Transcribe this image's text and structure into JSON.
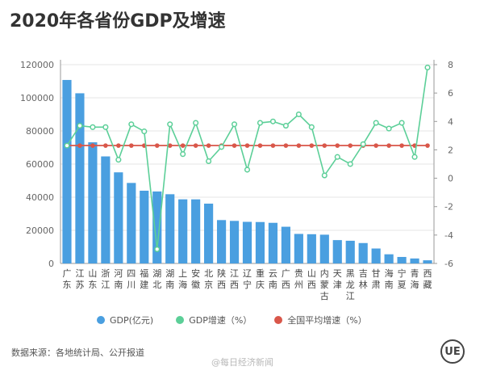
{
  "title": "2020年各省份GDP及增速",
  "source": "数据来源：各地统计局、公开报道",
  "watermark": "@每日经济新闻",
  "logo": "UE",
  "legend": [
    {
      "label": "GDP(亿元)",
      "color": "#4a9fe0"
    },
    {
      "label": "GDP增速（%）",
      "color": "#5ccf98"
    },
    {
      "label": "全国平均增速（%）",
      "color": "#d9574a"
    }
  ],
  "chart_data": {
    "type": "bar",
    "categories": [
      "广东",
      "江苏",
      "山东",
      "浙江",
      "河南",
      "四川",
      "福建",
      "湖北",
      "湖南",
      "上海",
      "安徽",
      "北京",
      "陕西",
      "江西",
      "辽宁",
      "重庆",
      "云南",
      "广西",
      "贵州",
      "山西",
      "内蒙古",
      "天津",
      "黑龙江",
      "吉林",
      "甘肃",
      "海南",
      "宁夏",
      "青海",
      "西藏"
    ],
    "category_labels": [
      "广\n东",
      "江\n苏",
      "山\n东",
      "浙\n江",
      "河\n南",
      "四\n川",
      "福\n建",
      "湖\n北",
      "湖\n南",
      "上\n海",
      "安\n徽",
      "北\n京",
      "陕\n西",
      "江\n西",
      "辽\n宁",
      "重\n庆",
      "云\n南",
      "广\n西",
      "贵\n州",
      "山\n西",
      "内\n蒙\n古",
      "天\n津",
      "黑\n龙\n江",
      "吉\n林",
      "甘\n肃",
      "海\n南",
      "宁\n夏",
      "青\n海",
      "西\n藏"
    ],
    "series": [
      {
        "name": "GDP(亿元)",
        "type": "bar",
        "axis": "left",
        "values": [
          110760,
          102719,
          73129,
          64613,
          54997,
          48599,
          43904,
          43443,
          41782,
          38701,
          38681,
          36103,
          26182,
          25692,
          25115,
          25003,
          24522,
          22157,
          17827,
          17652,
          17360,
          14084,
          13699,
          12311,
          9017,
          5532,
          3921,
          3006,
          1903
        ]
      },
      {
        "name": "GDP增速（%）",
        "type": "line",
        "axis": "right",
        "values": [
          2.3,
          3.7,
          3.6,
          3.6,
          1.3,
          3.8,
          3.3,
          -5.0,
          3.8,
          1.7,
          3.9,
          1.2,
          2.2,
          3.8,
          0.6,
          3.9,
          4.0,
          3.7,
          4.5,
          3.6,
          0.2,
          1.5,
          1.0,
          2.4,
          3.9,
          3.5,
          3.9,
          1.5,
          7.8
        ]
      },
      {
        "name": "全国平均增速（%）",
        "type": "line",
        "axis": "right",
        "values": [
          2.3,
          2.3,
          2.3,
          2.3,
          2.3,
          2.3,
          2.3,
          2.3,
          2.3,
          2.3,
          2.3,
          2.3,
          2.3,
          2.3,
          2.3,
          2.3,
          2.3,
          2.3,
          2.3,
          2.3,
          2.3,
          2.3,
          2.3,
          2.3,
          2.3,
          2.3,
          2.3,
          2.3,
          2.3
        ]
      }
    ],
    "ylim_left": [
      0,
      120000
    ],
    "yticks_left": [
      0,
      20000,
      40000,
      60000,
      80000,
      100000,
      120000
    ],
    "ylim_right": [
      -6,
      8
    ],
    "yticks_right": [
      -6,
      -4,
      -2,
      0,
      2,
      4,
      6,
      8
    ],
    "grid": true,
    "legend_position": "bottom"
  }
}
